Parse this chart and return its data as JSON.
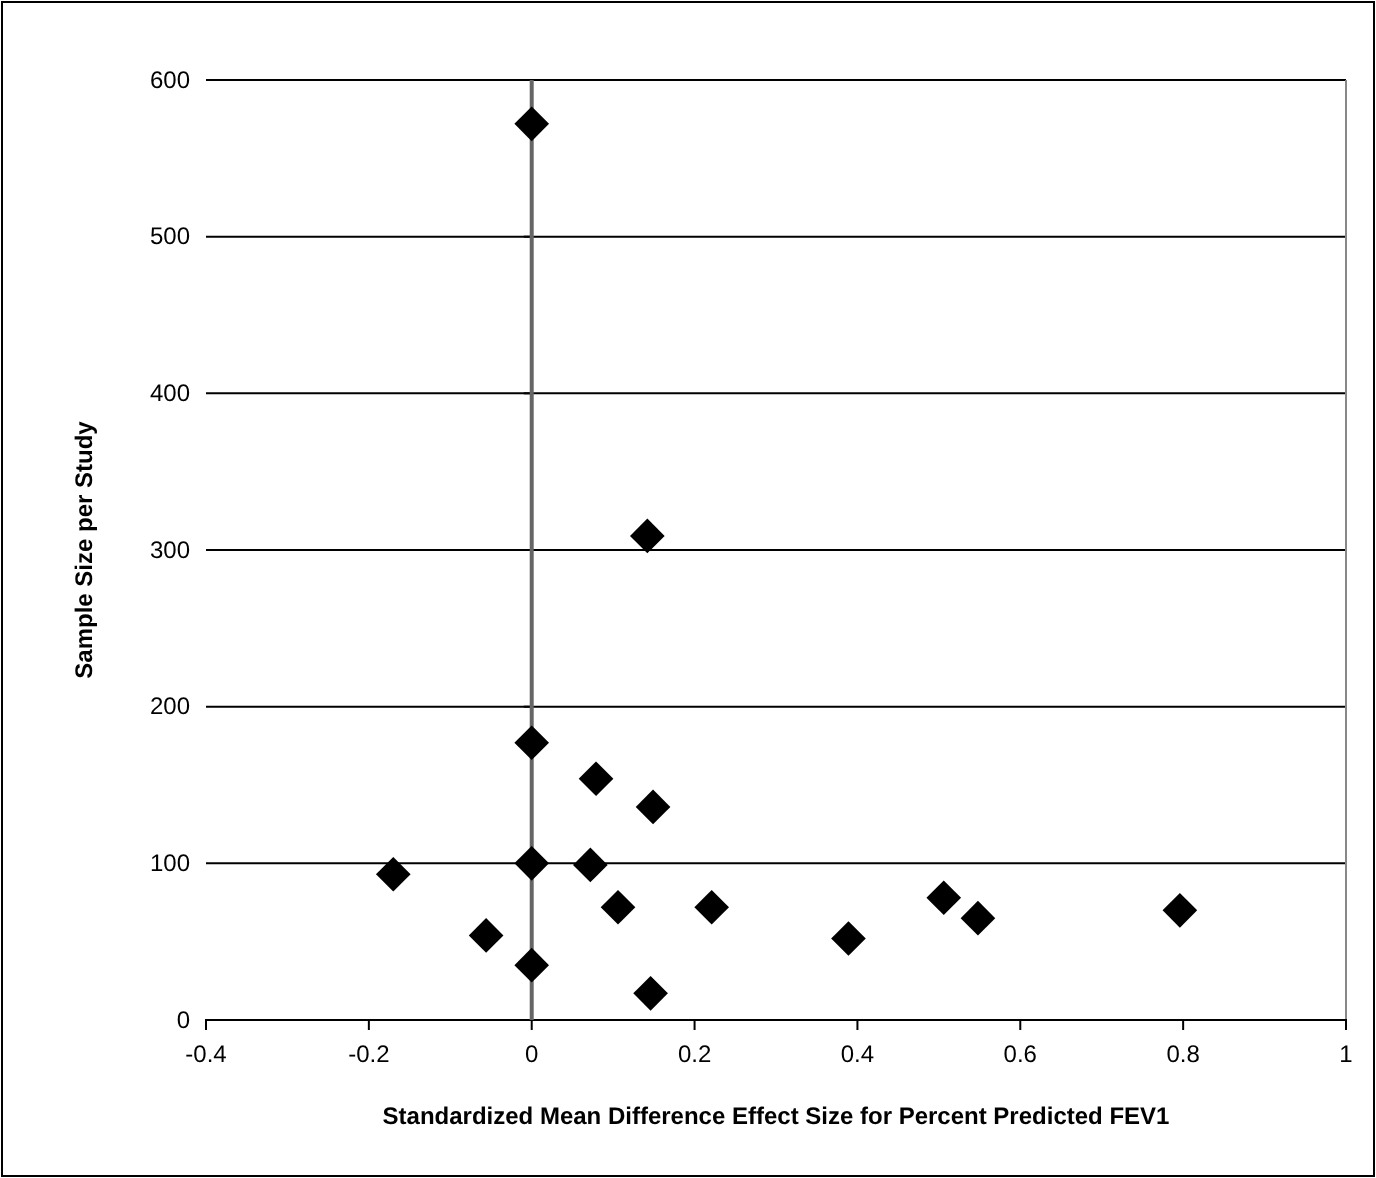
{
  "chart_data": {
    "type": "scatter",
    "xlabel": "Standardized Mean Difference Effect Size for Percent Predicted FEV1",
    "ylabel": "Sample Size per Study",
    "x": [
      0,
      0.142,
      0,
      0.079,
      0.149,
      -0.17,
      0,
      0.072,
      0.106,
      0.221,
      -0.056,
      0,
      0.146,
      0.389,
      0.506,
      0.548,
      0.796
    ],
    "values": [
      572,
      309,
      177,
      154,
      136,
      93,
      100,
      99,
      72,
      72,
      54,
      35,
      17,
      52,
      78,
      65,
      70
    ],
    "color": "#000000",
    "marker": "diamond",
    "xlim": [
      -0.4,
      1
    ],
    "xticks": [
      -0.4,
      -0.2,
      0,
      0.2,
      0.4,
      0.6,
      0.8,
      1
    ],
    "ylim": [
      0,
      600
    ],
    "yticks": [
      0,
      100,
      200,
      300,
      400,
      500,
      600
    ],
    "grid": "y",
    "ref_lines": [
      {
        "axis": "x",
        "value": 0,
        "color": "#666666"
      }
    ]
  }
}
